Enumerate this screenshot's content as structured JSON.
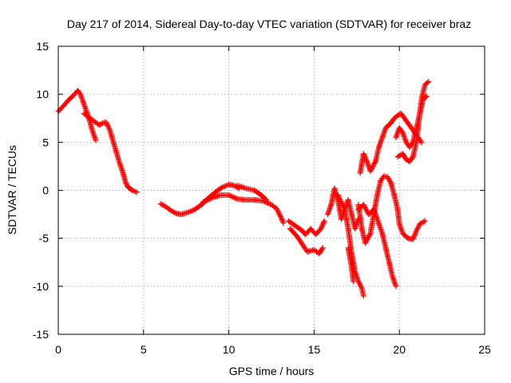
{
  "chart_data": {
    "type": "scatter",
    "title": "Day 217 of 2014, Sidereal Day-to-day VTEC variation (SDTVAR) for receiver braz",
    "xlabel": "GPS time / hours",
    "ylabel": "SDTVAR / TECUs",
    "xlim": [
      0,
      25
    ],
    "ylim": [
      -15,
      15
    ],
    "xticks": [
      "0",
      "5",
      "10",
      "15",
      "20",
      "25"
    ],
    "yticks": [
      "-15",
      "-10",
      "-5",
      "0",
      "5",
      "10",
      "15"
    ],
    "grid": true,
    "legend": "none",
    "marker": "plus",
    "color": "#ff0000",
    "series": [
      {
        "segments": [
          [
            [
              0.0,
              8.2
            ],
            [
              0.3,
              8.8
            ],
            [
              0.6,
              9.4
            ],
            [
              0.9,
              9.9
            ],
            [
              1.15,
              10.4
            ],
            [
              1.3,
              10.0
            ],
            [
              1.5,
              9.0
            ],
            [
              1.7,
              8.0
            ],
            [
              1.85,
              7.2
            ],
            [
              2.0,
              6.2
            ],
            [
              2.2,
              5.2
            ]
          ],
          [
            [
              1.5,
              8.0
            ],
            [
              1.8,
              7.6
            ],
            [
              2.1,
              7.2
            ],
            [
              2.4,
              6.8
            ],
            [
              2.6,
              7.0
            ],
            [
              2.8,
              7.1
            ],
            [
              3.0,
              6.4
            ],
            [
              3.2,
              5.2
            ],
            [
              3.4,
              4.0
            ],
            [
              3.6,
              2.8
            ],
            [
              3.8,
              1.8
            ],
            [
              3.95,
              0.8
            ],
            [
              4.1,
              0.3
            ],
            [
              4.35,
              0.0
            ],
            [
              4.6,
              -0.2
            ]
          ],
          [
            [
              6.0,
              -1.4
            ],
            [
              6.3,
              -1.7
            ],
            [
              6.6,
              -2.1
            ],
            [
              6.9,
              -2.4
            ],
            [
              7.2,
              -2.5
            ],
            [
              7.6,
              -2.3
            ],
            [
              8.0,
              -2.0
            ],
            [
              8.4,
              -1.5
            ],
            [
              8.8,
              -0.8
            ],
            [
              9.2,
              -0.2
            ],
            [
              9.6,
              0.3
            ],
            [
              10.0,
              0.6
            ],
            [
              10.3,
              0.5
            ],
            [
              10.6,
              0.2
            ]
          ],
          [
            [
              8.5,
              -1.2
            ],
            [
              9.0,
              -0.8
            ],
            [
              9.5,
              -0.5
            ],
            [
              10.0,
              -0.5
            ],
            [
              10.5,
              -0.9
            ],
            [
              11.0,
              -1.0
            ],
            [
              11.5,
              -1.0
            ],
            [
              12.0,
              -1.1
            ],
            [
              12.5,
              -1.5
            ],
            [
              12.8,
              -1.9
            ],
            [
              13.0,
              -2.6
            ],
            [
              13.2,
              -3.4
            ]
          ],
          [
            [
              10.5,
              0.5
            ],
            [
              11.0,
              0.2
            ],
            [
              11.5,
              0.0
            ],
            [
              11.9,
              -0.5
            ],
            [
              12.2,
              -1.0
            ]
          ],
          [
            [
              13.5,
              -3.2
            ],
            [
              13.9,
              -3.7
            ],
            [
              14.3,
              -4.2
            ],
            [
              14.5,
              -4.6
            ],
            [
              14.8,
              -4.0
            ],
            [
              15.1,
              -4.6
            ],
            [
              15.4,
              -4.0
            ],
            [
              15.6,
              -3.2
            ]
          ],
          [
            [
              13.6,
              -4.0
            ],
            [
              14.0,
              -4.8
            ],
            [
              14.3,
              -5.6
            ],
            [
              14.6,
              -6.4
            ],
            [
              15.0,
              -6.2
            ],
            [
              15.3,
              -6.6
            ],
            [
              15.5,
              -6.0
            ]
          ],
          [
            [
              15.8,
              -2.5
            ],
            [
              16.0,
              -1.5
            ],
            [
              16.2,
              0.2
            ],
            [
              16.4,
              -1.0
            ],
            [
              16.6,
              -3.0
            ],
            [
              16.8,
              -2.0
            ],
            [
              17.0,
              -1.0
            ],
            [
              17.2,
              -2.5
            ],
            [
              17.4,
              -4.0
            ],
            [
              17.6,
              -3.0
            ]
          ],
          [
            [
              16.4,
              -0.5
            ],
            [
              16.8,
              -2.0
            ],
            [
              17.0,
              -4.0
            ],
            [
              17.2,
              -6.5
            ],
            [
              17.4,
              -8.5
            ],
            [
              17.6,
              -9.5
            ],
            [
              17.8,
              -10.2
            ],
            [
              17.9,
              -11.0
            ]
          ],
          [
            [
              17.0,
              -6.0
            ],
            [
              17.2,
              -8.0
            ],
            [
              17.3,
              -9.5
            ]
          ],
          [
            [
              17.6,
              -1.5
            ],
            [
              17.8,
              -4.0
            ],
            [
              18.0,
              -5.5
            ],
            [
              18.3,
              -4.5
            ],
            [
              18.5,
              -2.5
            ],
            [
              18.7,
              -0.5
            ],
            [
              18.9,
              1.0
            ],
            [
              19.1,
              1.5
            ],
            [
              19.3,
              1.4
            ],
            [
              19.5,
              0.8
            ],
            [
              19.7,
              -0.5
            ],
            [
              19.9,
              -2.0
            ],
            [
              20.0,
              -3.5
            ],
            [
              20.2,
              -4.5
            ],
            [
              20.5,
              -5.0
            ],
            [
              20.8,
              -5.1
            ],
            [
              21.0,
              -4.2
            ],
            [
              21.2,
              -3.5
            ],
            [
              21.5,
              -3.2
            ]
          ],
          [
            [
              17.6,
              -2.0
            ],
            [
              17.9,
              -1.5
            ],
            [
              18.2,
              -2.5
            ],
            [
              18.5,
              -2.0
            ],
            [
              18.8,
              -3.5
            ],
            [
              19.0,
              -4.5
            ],
            [
              19.2,
              -6.0
            ],
            [
              19.4,
              -7.5
            ],
            [
              19.6,
              -9.0
            ],
            [
              19.8,
              -10.0
            ]
          ],
          [
            [
              17.7,
              1.8
            ],
            [
              17.9,
              3.8
            ],
            [
              18.1,
              3.0
            ],
            [
              18.3,
              2.0
            ],
            [
              18.6,
              3.0
            ],
            [
              18.8,
              4.5
            ],
            [
              19.0,
              5.5
            ],
            [
              19.2,
              6.5
            ],
            [
              19.5,
              7.0
            ],
            [
              19.7,
              7.5
            ],
            [
              19.9,
              7.8
            ],
            [
              20.1,
              8.0
            ],
            [
              20.3,
              7.5
            ],
            [
              20.5,
              7.0
            ],
            [
              20.7,
              6.5
            ],
            [
              20.9,
              6.0
            ],
            [
              21.1,
              5.5
            ],
            [
              21.3,
              5.0
            ]
          ],
          [
            [
              19.8,
              5.5
            ],
            [
              20.0,
              6.5
            ],
            [
              20.2,
              6.0
            ],
            [
              20.4,
              5.0
            ],
            [
              20.6,
              4.5
            ],
            [
              20.8,
              5.0
            ],
            [
              21.0,
              6.5
            ],
            [
              21.2,
              8.0
            ],
            [
              21.4,
              9.5
            ],
            [
              21.6,
              9.8
            ]
          ],
          [
            [
              19.9,
              3.5
            ],
            [
              20.2,
              3.8
            ],
            [
              20.4,
              3.2
            ],
            [
              20.6,
              3.0
            ],
            [
              20.8,
              3.5
            ],
            [
              21.0,
              5.0
            ],
            [
              21.1,
              6.5
            ],
            [
              21.2,
              8.0
            ],
            [
              21.3,
              9.5
            ],
            [
              21.5,
              11.0
            ],
            [
              21.7,
              11.3
            ]
          ]
        ]
      }
    ]
  }
}
